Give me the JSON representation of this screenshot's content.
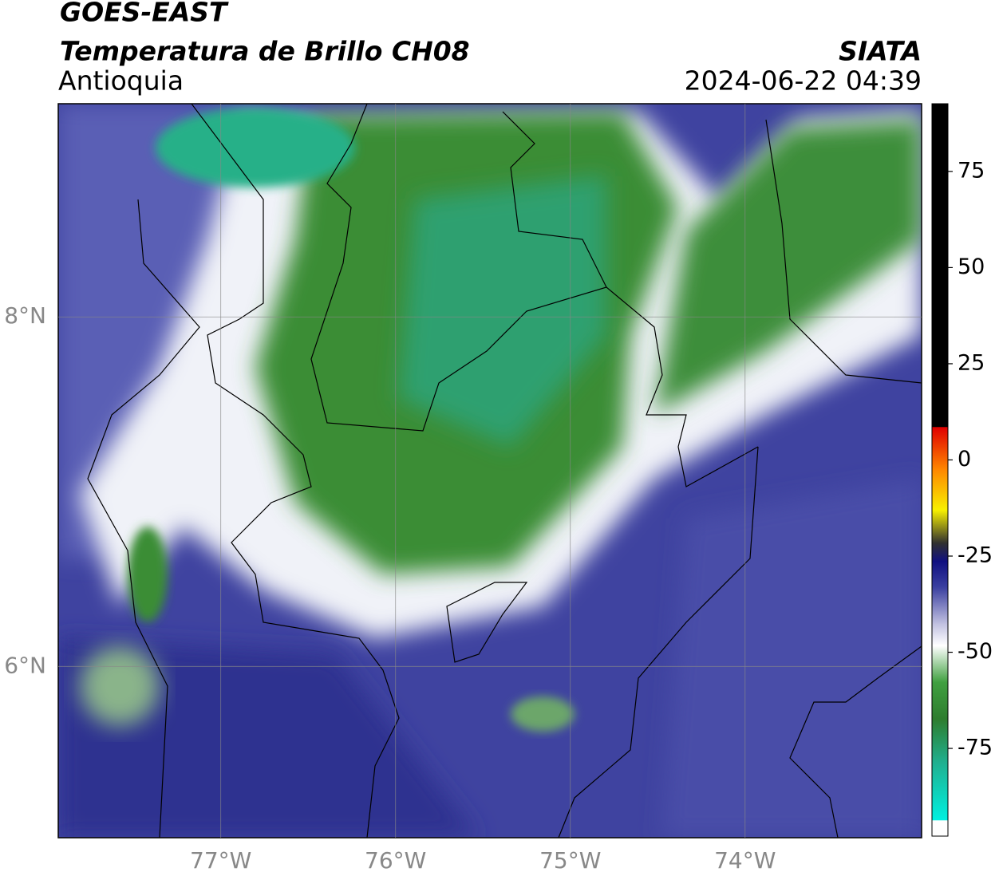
{
  "header": {
    "title": "GOES-EAST",
    "subtitle": "Temperatura de Brillo CH08",
    "region": "Antioquia",
    "source": "SIATA",
    "timestamp": "2024-06-22 04:39"
  },
  "map": {
    "lonlim": [
      -77.93,
      -72.99
    ],
    "latlim": [
      5.02,
      9.22
    ],
    "lon_ticks": [
      {
        "value": -77,
        "label": "77°W"
      },
      {
        "value": -76,
        "label": "76°W"
      },
      {
        "value": -75,
        "label": "75°W"
      },
      {
        "value": -74,
        "label": "74°W"
      }
    ],
    "lat_ticks": [
      {
        "value": 8,
        "label": "8°N"
      },
      {
        "value": 6,
        "label": "6°N"
      }
    ]
  },
  "colorbar": {
    "lim": [
      -97.8,
      92.6
    ],
    "ticks": [
      75,
      50,
      25,
      0,
      -25,
      -50,
      -75
    ]
  }
}
